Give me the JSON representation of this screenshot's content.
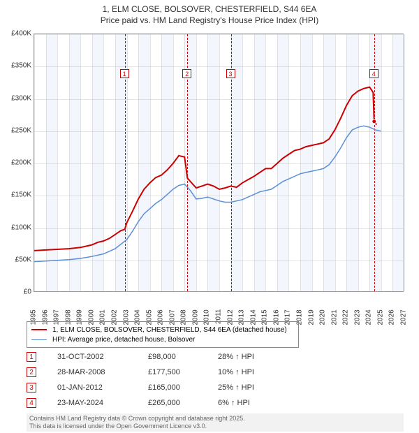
{
  "title_line1": "1, ELM CLOSE, BOLSOVER, CHESTERFIELD, S44 6EA",
  "title_line2": "Price paid vs. HM Land Registry's House Price Index (HPI)",
  "chart": {
    "type": "line",
    "x_start_year": 1995,
    "x_end_year": 2027,
    "ylim": [
      0,
      400000
    ],
    "ytick_step": 50000,
    "yticks": [
      "£0",
      "£50K",
      "£100K",
      "£150K",
      "£200K",
      "£250K",
      "£300K",
      "£350K",
      "£400K"
    ],
    "xticks": [
      "1995",
      "1996",
      "1997",
      "1998",
      "1999",
      "2000",
      "2001",
      "2002",
      "2003",
      "2004",
      "2005",
      "2006",
      "2007",
      "2008",
      "2009",
      "2010",
      "2011",
      "2012",
      "2013",
      "2014",
      "2015",
      "2016",
      "2017",
      "2018",
      "2019",
      "2020",
      "2021",
      "2022",
      "2023",
      "2024",
      "2025",
      "2026",
      "2027"
    ],
    "background_color": "#ffffff",
    "grid_color": "#bbbbbb",
    "band_years": [
      [
        1996,
        1997
      ],
      [
        1998,
        1999
      ],
      [
        2000,
        2001
      ],
      [
        2002,
        2003
      ],
      [
        2004,
        2005
      ],
      [
        2006,
        2007
      ],
      [
        2008,
        2009
      ],
      [
        2010,
        2011
      ],
      [
        2012,
        2013
      ],
      [
        2014,
        2015
      ],
      [
        2016,
        2017
      ],
      [
        2018,
        2019
      ],
      [
        2020,
        2021
      ],
      [
        2022,
        2023
      ],
      [
        2024,
        2025
      ],
      [
        2026,
        2027
      ]
    ],
    "band_color": "#e9eef9",
    "series": [
      {
        "name": "price_paid",
        "label": "1, ELM CLOSE, BOLSOVER, CHESTERFIELD, S44 6EA (detached house)",
        "color": "#cc0000",
        "width": 2,
        "data": [
          [
            1995.0,
            65000
          ],
          [
            1996.0,
            66000
          ],
          [
            1997.0,
            67000
          ],
          [
            1998.0,
            68000
          ],
          [
            1999.0,
            70000
          ],
          [
            2000.0,
            74000
          ],
          [
            2000.5,
            78000
          ],
          [
            2001.0,
            80000
          ],
          [
            2001.5,
            84000
          ],
          [
            2002.0,
            90000
          ],
          [
            2002.5,
            96000
          ],
          [
            2002.83,
            98000
          ],
          [
            2003.0,
            108000
          ],
          [
            2003.5,
            126000
          ],
          [
            2004.0,
            145000
          ],
          [
            2004.5,
            160000
          ],
          [
            2005.0,
            170000
          ],
          [
            2005.5,
            178000
          ],
          [
            2006.0,
            182000
          ],
          [
            2006.5,
            190000
          ],
          [
            2007.0,
            200000
          ],
          [
            2007.5,
            212000
          ],
          [
            2008.0,
            210000
          ],
          [
            2008.24,
            177500
          ],
          [
            2008.5,
            172000
          ],
          [
            2009.0,
            162000
          ],
          [
            2009.5,
            165000
          ],
          [
            2010.0,
            168000
          ],
          [
            2010.5,
            165000
          ],
          [
            2011.0,
            160000
          ],
          [
            2011.5,
            162000
          ],
          [
            2012.0,
            165000
          ],
          [
            2012.5,
            163000
          ],
          [
            2013.0,
            170000
          ],
          [
            2013.5,
            175000
          ],
          [
            2014.0,
            180000
          ],
          [
            2014.5,
            186000
          ],
          [
            2015.0,
            192000
          ],
          [
            2015.5,
            192000
          ],
          [
            2016.0,
            200000
          ],
          [
            2016.5,
            208000
          ],
          [
            2017.0,
            214000
          ],
          [
            2017.5,
            220000
          ],
          [
            2018.0,
            222000
          ],
          [
            2018.5,
            226000
          ],
          [
            2019.0,
            228000
          ],
          [
            2019.5,
            230000
          ],
          [
            2020.0,
            232000
          ],
          [
            2020.5,
            238000
          ],
          [
            2021.0,
            252000
          ],
          [
            2021.5,
            270000
          ],
          [
            2022.0,
            290000
          ],
          [
            2022.5,
            305000
          ],
          [
            2023.0,
            312000
          ],
          [
            2023.5,
            316000
          ],
          [
            2024.0,
            318000
          ],
          [
            2024.3,
            310000
          ],
          [
            2024.39,
            265000
          ],
          [
            2024.6,
            260000
          ]
        ]
      },
      {
        "name": "hpi",
        "label": "HPI: Average price, detached house, Bolsover",
        "color": "#5b8fd6",
        "width": 1.5,
        "data": [
          [
            1995.0,
            48000
          ],
          [
            1996.0,
            49000
          ],
          [
            1997.0,
            50000
          ],
          [
            1998.0,
            51000
          ],
          [
            1999.0,
            53000
          ],
          [
            2000.0,
            56000
          ],
          [
            2001.0,
            60000
          ],
          [
            2002.0,
            68000
          ],
          [
            2003.0,
            82000
          ],
          [
            2003.5,
            95000
          ],
          [
            2004.0,
            110000
          ],
          [
            2004.5,
            122000
          ],
          [
            2005.0,
            130000
          ],
          [
            2005.5,
            138000
          ],
          [
            2006.0,
            144000
          ],
          [
            2006.5,
            152000
          ],
          [
            2007.0,
            160000
          ],
          [
            2007.5,
            166000
          ],
          [
            2008.0,
            168000
          ],
          [
            2008.5,
            158000
          ],
          [
            2009.0,
            145000
          ],
          [
            2009.5,
            146000
          ],
          [
            2010.0,
            148000
          ],
          [
            2010.5,
            145000
          ],
          [
            2011.0,
            142000
          ],
          [
            2011.5,
            140000
          ],
          [
            2012.0,
            140000
          ],
          [
            2012.5,
            142000
          ],
          [
            2013.0,
            144000
          ],
          [
            2013.5,
            148000
          ],
          [
            2014.0,
            152000
          ],
          [
            2014.5,
            156000
          ],
          [
            2015.0,
            158000
          ],
          [
            2015.5,
            160000
          ],
          [
            2016.0,
            166000
          ],
          [
            2016.5,
            172000
          ],
          [
            2017.0,
            176000
          ],
          [
            2017.5,
            180000
          ],
          [
            2018.0,
            184000
          ],
          [
            2018.5,
            186000
          ],
          [
            2019.0,
            188000
          ],
          [
            2019.5,
            190000
          ],
          [
            2020.0,
            192000
          ],
          [
            2020.5,
            198000
          ],
          [
            2021.0,
            210000
          ],
          [
            2021.5,
            224000
          ],
          [
            2022.0,
            240000
          ],
          [
            2022.5,
            252000
          ],
          [
            2023.0,
            256000
          ],
          [
            2023.5,
            258000
          ],
          [
            2024.0,
            256000
          ],
          [
            2024.5,
            252000
          ],
          [
            2025.0,
            250000
          ]
        ]
      }
    ],
    "transactions": [
      {
        "n": "1",
        "year": 2002.83,
        "date": "31-OCT-2002",
        "price": "£98,000",
        "delta": "28% ↑ HPI",
        "color": "#cc0000"
      },
      {
        "n": "2",
        "year": 2008.24,
        "date": "28-MAR-2008",
        "price": "£177,500",
        "delta": "10% ↑ HPI",
        "color": "#cc0000"
      },
      {
        "n": "3",
        "year": 2012.0,
        "date": "01-JAN-2012",
        "price": "£165,000",
        "delta": "25% ↑ HPI",
        "color": "#cc0000"
      },
      {
        "n": "4",
        "year": 2024.39,
        "date": "23-MAY-2024",
        "price": "£265,000",
        "delta": "6% ↑ HPI",
        "color": "#cc0000"
      }
    ],
    "tx_marker_y": 346000
  },
  "legend_border": "#888888",
  "footer_line1": "Contains HM Land Registry data © Crown copyright and database right 2025.",
  "footer_line2": "This data is licensed under the Open Government Licence v3.0."
}
